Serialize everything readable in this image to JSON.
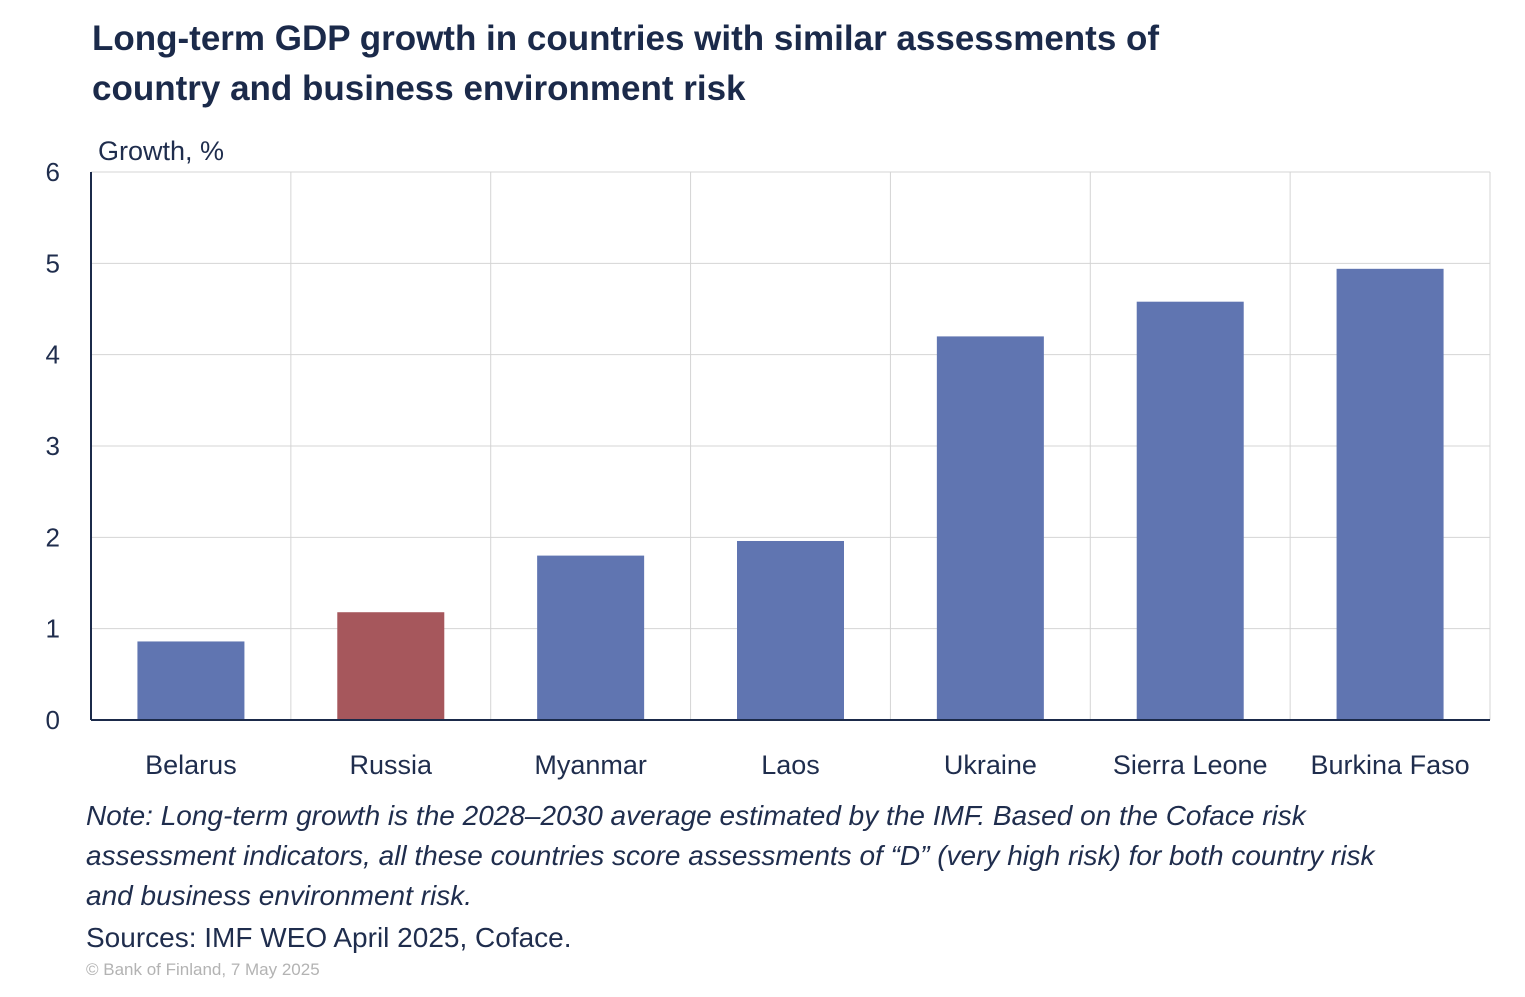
{
  "title_lines": [
    "Long-term GDP growth in countries with similar assessments of",
    "country and business environment risk"
  ],
  "note_lines": [
    "Note: Long-term growth is the 2028–2030 average estimated by the IMF. Based on the Coface risk",
    "assessment indicators, all these countries score assessments of “D” (very high risk) for both country risk",
    "and business environment risk."
  ],
  "sources": "Sources: IMF WEO April 2025, Coface.",
  "copyright": "© Bank of Finland, 7 May 2025",
  "colors": {
    "bar_default": "#6075b1",
    "bar_highlight": "#a6575c",
    "grid": "#d4d4d4",
    "axis": "#1b2a4a"
  },
  "chart_data": {
    "type": "bar",
    "title": "Long-term GDP growth in countries with similar assessments of country and business environment risk",
    "ylabel": "Growth, %",
    "xlabel": "",
    "ylim": [
      0,
      6
    ],
    "yticks": [
      0,
      1,
      2,
      3,
      4,
      5,
      6
    ],
    "grid": true,
    "categories": [
      "Belarus",
      "Russia",
      "Myanmar",
      "Laos",
      "Ukraine",
      "Sierra Leone",
      "Burkina Faso"
    ],
    "values": [
      0.86,
      1.18,
      1.8,
      1.96,
      4.2,
      4.58,
      4.94
    ],
    "highlight": [
      "Russia"
    ]
  }
}
